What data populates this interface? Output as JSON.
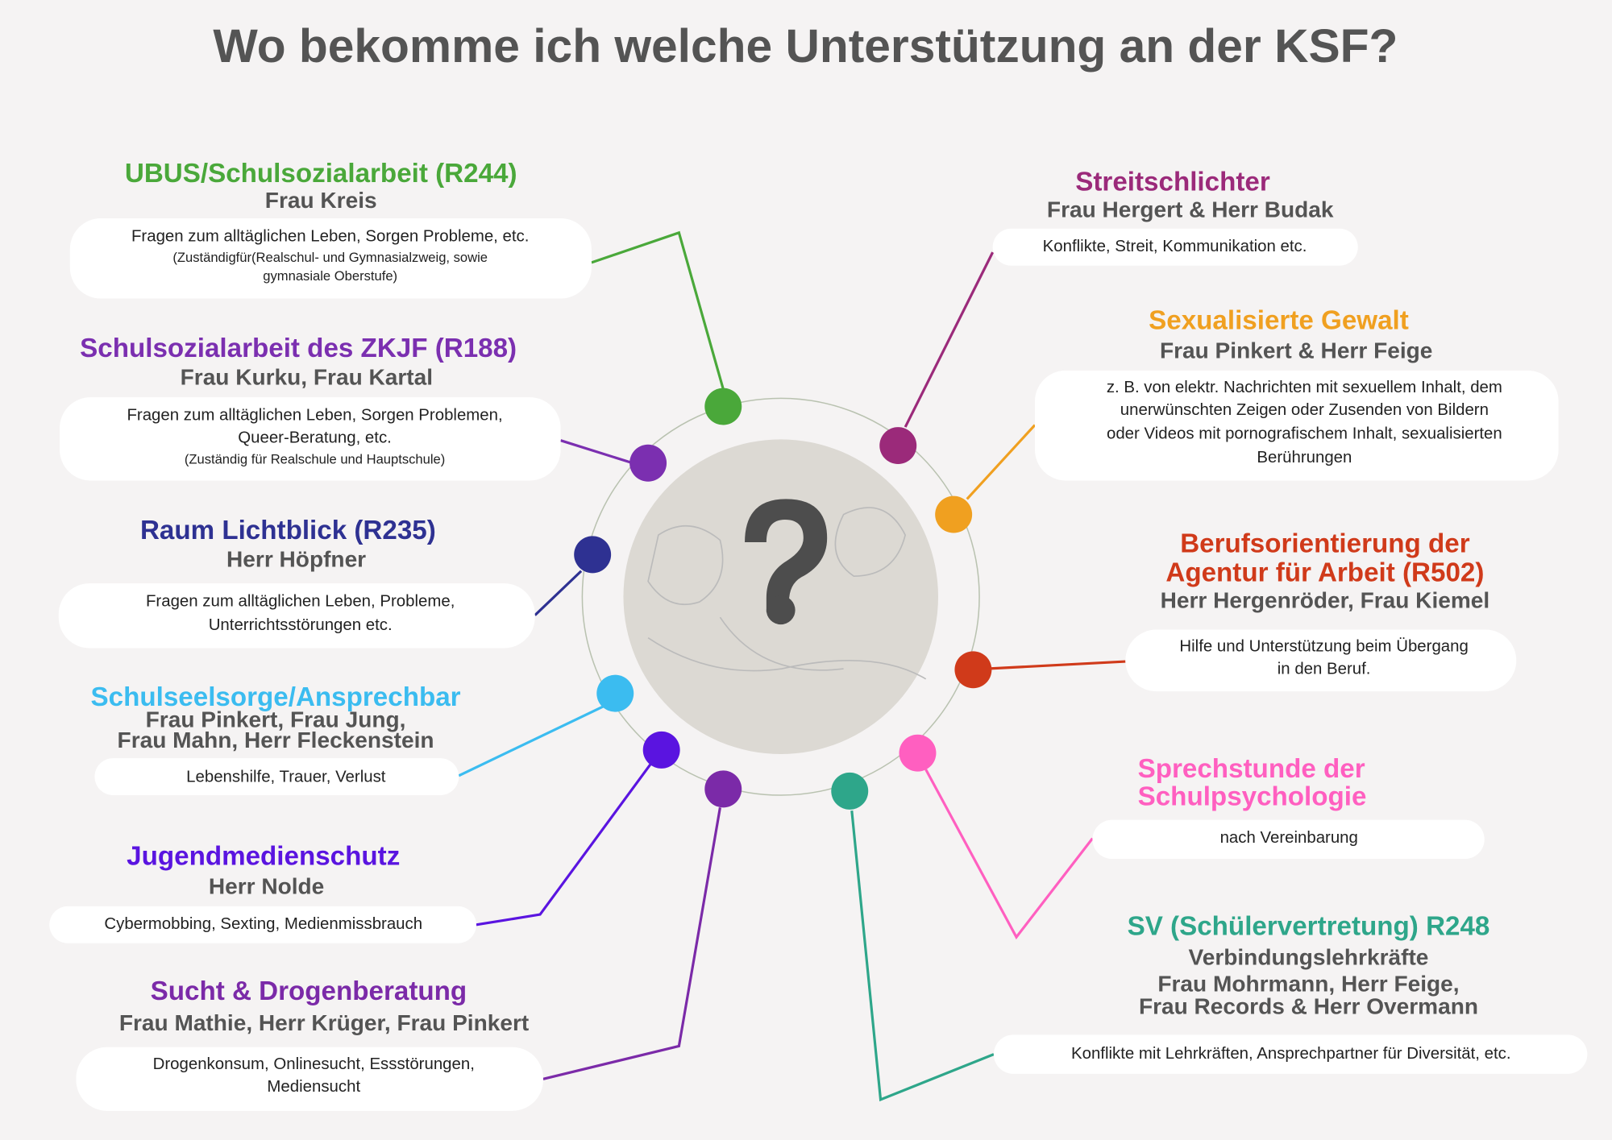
{
  "title": "Wo bekomme ich welche Unterstützung an der KSF?",
  "sections": [
    {
      "heading": [
        "UBUS/Schulsozialarbeit (R244)"
      ],
      "color": "#4aa83a",
      "persons": [
        "Frau Kreis"
      ],
      "description": [
        "Fragen zum alltäglichen Leben, Sorgen Probleme, etc."
      ],
      "note": [
        "(Zuständigfür(Realschul- und Gymnasialzweig, sowie",
        "gymnasiale Oberstufe)"
      ]
    },
    {
      "heading": [
        "Schulsozialarbeit des ZKJF (R188)"
      ],
      "color": "#7b2fb0",
      "persons": [
        "Frau Kurku, Frau Kartal"
      ],
      "description": [
        "Fragen zum alltäglichen Leben, Sorgen Problemen,",
        "Queer-Beratung, etc."
      ],
      "note": [
        "(Zuständig für Realschule und Hauptschule)"
      ]
    },
    {
      "heading": [
        "Raum Lichtblick (R235)"
      ],
      "color": "#2e3192",
      "persons": [
        "Herr Höpfner"
      ],
      "description": [
        "Fragen zum alltäglichen Leben, Probleme,",
        "Unterrichtsstörungen etc."
      ],
      "note": []
    },
    {
      "heading": [
        "Schulseelsorge/Ansprechbar"
      ],
      "color": "#3bbcf0",
      "persons": [
        "Frau Pinkert, Frau Jung,",
        "Frau Mahn, Herr Fleckenstein"
      ],
      "description": [
        "Lebenshilfe, Trauer, Verlust"
      ],
      "note": []
    },
    {
      "heading": [
        "Jugendmedienschutz"
      ],
      "color": "#5a14e0",
      "persons": [
        "Herr Nolde"
      ],
      "description": [
        "Cybermobbing, Sexting, Medienmissbrauch"
      ],
      "note": []
    },
    {
      "heading": [
        "Sucht & Drogenberatung"
      ],
      "color": "#7b2aa8",
      "persons": [
        "Frau Mathie, Herr Krüger, Frau Pinkert"
      ],
      "description": [
        "Drogenkonsum, Onlinesucht, Essstörungen,",
        "Mediensucht"
      ],
      "note": []
    },
    {
      "heading": [
        "Streitschlichter"
      ],
      "color": "#9b2a7a",
      "persons": [
        "Frau Hergert & Herr Budak"
      ],
      "description": [
        "Konflikte, Streit, Kommunikation etc."
      ],
      "note": []
    },
    {
      "heading": [
        "Sexualisierte Gewalt"
      ],
      "color": "#f0a020",
      "persons": [
        "Frau Pinkert & Herr Feige"
      ],
      "description": [
        "z. B. von elektr. Nachrichten mit sexuellem Inhalt, dem",
        "unerwünschten Zeigen oder Zusenden von Bildern",
        "oder Videos mit pornografischem Inhalt, sexualisierten",
        "Berührungen"
      ],
      "note": []
    },
    {
      "heading": [
        "Berufsorientierung der",
        "Agentur für Arbeit (R502)"
      ],
      "color": "#d03a1a",
      "persons": [
        "Herr Hergenröder, Frau Kiemel"
      ],
      "description": [
        "Hilfe und Unterstützung beim Übergang",
        "in den Beruf."
      ],
      "note": []
    },
    {
      "heading": [
        "Sprechstunde  der",
        "Schulpsychologie"
      ],
      "color": "#ff5fc0",
      "persons": [],
      "description": [
        "nach Vereinbarung"
      ],
      "note": []
    },
    {
      "heading": [
        "SV (Schülervertretung) R248"
      ],
      "color": "#2ea68a",
      "persons": [
        "Verbindungslehrkräfte",
        "Frau Mohrmann, Herr Feige,",
        "Frau Records & Herr Overmann"
      ],
      "description": [
        "Konflikte mit Lehrkräften, Ansprechpartner für Diversität, etc."
      ],
      "note": []
    }
  ]
}
